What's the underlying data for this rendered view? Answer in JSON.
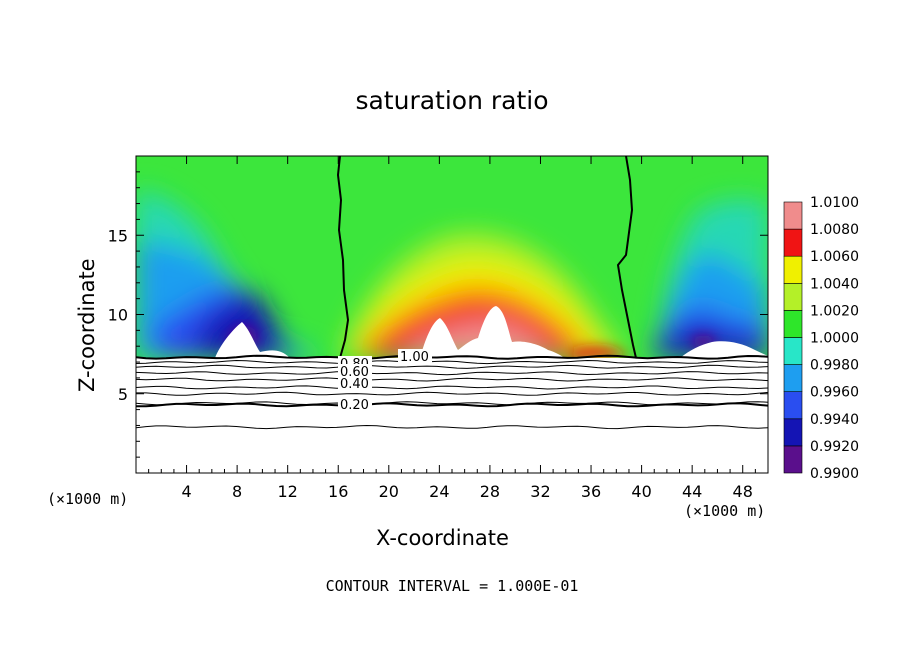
{
  "chart_data": {
    "type": "heatmap",
    "title": "saturation ratio",
    "xlabel": "X-coordinate",
    "ylabel": "Z-coordinate",
    "x_unit_label_left": "(×1000 m)",
    "x_unit_label_right": "(×1000 m)",
    "footer": "CONTOUR INTERVAL = 1.000E-01",
    "xlim": [
      0,
      50
    ],
    "ylim": [
      0,
      20
    ],
    "x_ticks": [
      4,
      8,
      12,
      16,
      20,
      24,
      28,
      32,
      36,
      40,
      44,
      48
    ],
    "x_tick_labels": [
      "4",
      "8",
      "12",
      "16",
      "20",
      "24",
      "28",
      "32",
      "36",
      "40",
      "44",
      "48"
    ],
    "y_ticks": [
      5,
      10,
      15
    ],
    "y_tick_labels": [
      "5",
      "10",
      "15"
    ],
    "colorbar": {
      "levels": [
        "0.9900",
        "0.9920",
        "0.9940",
        "0.9960",
        "0.9980",
        "1.0000",
        "1.0020",
        "1.0040",
        "1.0060",
        "1.0080",
        "1.0100"
      ],
      "colors": [
        "#5a0f8c",
        "#1414b4",
        "#2a4ef0",
        "#1e9ef0",
        "#28e6c8",
        "#2ee62a",
        "#b4f028",
        "#f0f000",
        "#ff9600",
        "#f01414",
        "#f08c8c"
      ]
    },
    "contour_labels": [
      "1.00",
      "0.80",
      "0.60",
      "0.40",
      "0.20"
    ],
    "contour_lines_below_cloud": [
      {
        "level": "1.00",
        "z": 7.3
      },
      {
        "level": "0.90",
        "z": 7.0
      },
      {
        "level": "0.80",
        "z": 6.7
      },
      {
        "level": "0.70",
        "z": 6.3
      },
      {
        "level": "0.60",
        "z": 5.9
      },
      {
        "level": "0.50",
        "z": 5.4
      },
      {
        "level": "0.40",
        "z": 5.0
      },
      {
        "level": "0.30",
        "z": 4.4
      },
      {
        "level": "0.20",
        "z": 4.3
      },
      {
        "level": "0.10",
        "z": 2.9
      }
    ],
    "vertical_contours_1_00": [
      {
        "x_range": [
          16.1,
          17.2
        ],
        "z_range": [
          7.3,
          20
        ]
      },
      {
        "x_range": [
          38.8,
          39.8
        ],
        "z_range": [
          7.3,
          20
        ]
      }
    ],
    "regions": [
      {
        "x_range": [
          0,
          16.5
        ],
        "z_range": [
          7.3,
          20
        ],
        "value_range": [
          0.99,
          1.0
        ],
        "description_value": "subsaturated, minimum near x=9, z=9"
      },
      {
        "x_range": [
          16.5,
          39
        ],
        "z_range": [
          7.3,
          20
        ],
        "value_range": [
          1.0,
          1.01
        ],
        "description_value": "supersaturated, maximum near x=28, z=10"
      },
      {
        "x_range": [
          39,
          50
        ],
        "z_range": [
          7.3,
          20
        ],
        "value_range": [
          0.99,
          1.0
        ],
        "description_value": "subsaturated, minimum near x=45, z=9"
      }
    ]
  }
}
